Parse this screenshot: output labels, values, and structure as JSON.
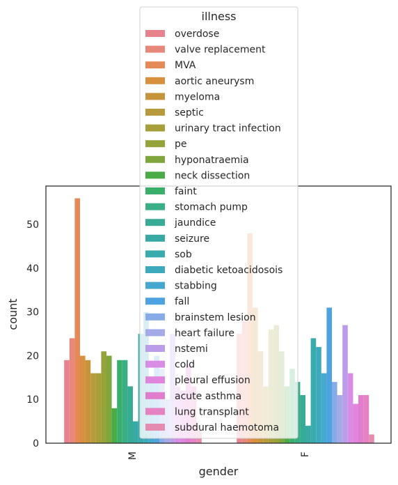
{
  "chart_data": {
    "type": "bar",
    "xlabel": "gender",
    "ylabel": "count",
    "categories": [
      "M",
      "F"
    ],
    "ylim": [
      0,
      58.8
    ],
    "yticks": [
      0,
      10,
      20,
      30,
      40,
      50
    ],
    "grid": false,
    "legend": {
      "title": "illness",
      "placement": "top-center"
    },
    "series": [
      {
        "name": "overdose",
        "color": "#e8828e",
        "values": [
          19,
          25
        ]
      },
      {
        "name": "valve replacement",
        "color": "#e8887a",
        "values": [
          24,
          28
        ]
      },
      {
        "name": "MVA",
        "color": "#e58a56",
        "values": [
          56,
          48
        ]
      },
      {
        "name": "aortic aneurysm",
        "color": "#d8903e",
        "values": [
          20,
          31
        ]
      },
      {
        "name": "myeloma",
        "color": "#c6953b",
        "values": [
          19,
          21
        ]
      },
      {
        "name": "septic",
        "color": "#b79a3c",
        "values": [
          16,
          13
        ]
      },
      {
        "name": "urinary tract infection",
        "color": "#a79f3a",
        "values": [
          16,
          26
        ]
      },
      {
        "name": "pe",
        "color": "#96a23a",
        "values": [
          21,
          27
        ]
      },
      {
        "name": "hyponatraemia",
        "color": "#7fa63c",
        "values": [
          20,
          21
        ]
      },
      {
        "name": "neck dissection",
        "color": "#4aac46",
        "values": [
          8,
          13
        ]
      },
      {
        "name": "faint",
        "color": "#3aae6b",
        "values": [
          19,
          17
        ]
      },
      {
        "name": "stomach pump",
        "color": "#3aae85",
        "values": [
          19,
          14
        ]
      },
      {
        "name": "jaundice",
        "color": "#38ab97",
        "values": [
          13,
          11
        ]
      },
      {
        "name": "seizure",
        "color": "#39aaa3",
        "values": [
          5,
          4
        ]
      },
      {
        "name": "sob",
        "color": "#3aabad",
        "values": [
          25,
          24
        ]
      },
      {
        "name": "diabetic ketoacidosois",
        "color": "#3ca9bd",
        "values": [
          30,
          22
        ]
      },
      {
        "name": "stabbing",
        "color": "#46a7cf",
        "values": [
          14,
          16
        ]
      },
      {
        "name": "fall",
        "color": "#4da3df",
        "values": [
          20,
          31
        ]
      },
      {
        "name": "brainstem lesion",
        "color": "#86abe6",
        "values": [
          17,
          14
        ]
      },
      {
        "name": "heart failure",
        "color": "#a4a9e8",
        "values": [
          10,
          11
        ]
      },
      {
        "name": "nstemi",
        "color": "#bb9ce8",
        "values": [
          25,
          27
        ]
      },
      {
        "name": "cold",
        "color": "#d98ce4",
        "values": [
          13,
          16
        ]
      },
      {
        "name": "pleural effusion",
        "color": "#e184dd",
        "values": [
          12,
          9
        ]
      },
      {
        "name": "acute asthma",
        "color": "#e07dcc",
        "values": [
          18,
          11
        ]
      },
      {
        "name": "lung transplant",
        "color": "#e583c2",
        "values": [
          13,
          11
        ]
      },
      {
        "name": "subdural haemotoma",
        "color": "#e58bb0",
        "values": [
          3,
          2
        ]
      }
    ]
  }
}
